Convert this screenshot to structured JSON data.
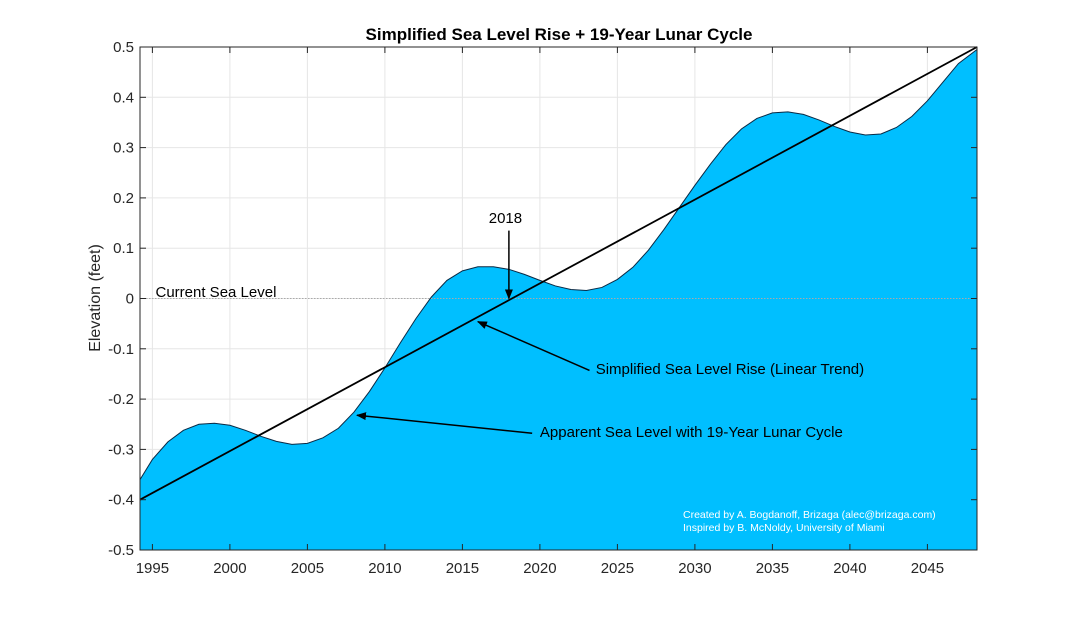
{
  "chart_data": {
    "type": "area",
    "title": "Simplified Sea Level Rise + 19-Year Lunar Cycle",
    "xlabel": "",
    "ylabel": "Elevation (feet)",
    "xlim": [
      1994.2,
      2048.2
    ],
    "ylim": [
      -0.5,
      0.5
    ],
    "x_ticks": [
      1995,
      2000,
      2005,
      2010,
      2015,
      2020,
      2025,
      2030,
      2035,
      2040,
      2045
    ],
    "y_ticks": [
      -0.5,
      -0.4,
      -0.3,
      -0.2,
      -0.1,
      0,
      0.1,
      0.2,
      0.3,
      0.4,
      0.5
    ],
    "y_tick_labels": [
      "-0.5",
      "-0.4",
      "-0.3",
      "-0.2",
      "-0.1",
      "0",
      "0.1",
      "0.2",
      "0.3",
      "0.4",
      "0.5"
    ],
    "grid": true,
    "series": [
      {
        "role": "area",
        "color": "#00bfff",
        "x": [
          1994.2,
          1995,
          1996,
          1997,
          1998,
          1999,
          2000,
          2001,
          2002,
          2003,
          2004,
          2005,
          2006,
          2007,
          2008,
          2009,
          2010,
          2011,
          2012,
          2013,
          2014,
          2015,
          2016,
          2017,
          2018,
          2019,
          2020,
          2021,
          2022,
          2023,
          2024,
          2025,
          2026,
          2027,
          2028,
          2029,
          2030,
          2031,
          2032,
          2033,
          2034,
          2035,
          2036,
          2037,
          2038,
          2039,
          2040,
          2041,
          2042,
          2043,
          2044,
          2045,
          2046,
          2047,
          2048.2
        ],
        "values": [
          -0.36,
          -0.32,
          -0.285,
          -0.262,
          -0.25,
          -0.248,
          -0.252,
          -0.262,
          -0.274,
          -0.284,
          -0.29,
          -0.288,
          -0.277,
          -0.258,
          -0.226,
          -0.185,
          -0.138,
          -0.088,
          -0.04,
          0.003,
          0.036,
          0.055,
          0.063,
          0.063,
          0.058,
          0.048,
          0.036,
          0.025,
          0.018,
          0.016,
          0.022,
          0.038,
          0.062,
          0.096,
          0.137,
          0.181,
          0.225,
          0.267,
          0.306,
          0.337,
          0.358,
          0.369,
          0.371,
          0.366,
          0.355,
          0.342,
          0.331,
          0.325,
          0.327,
          0.34,
          0.362,
          0.393,
          0.43,
          0.467,
          0.495
        ]
      },
      {
        "role": "line",
        "color": "#000000",
        "x": [
          1994.2,
          2048.2
        ],
        "values": [
          -0.4,
          0.5
        ]
      },
      {
        "role": "reference",
        "color": "#aaaaaa",
        "x": [
          1994.2,
          2048.2
        ],
        "values": [
          0,
          0
        ]
      }
    ],
    "annotations": [
      {
        "text": "Current Sea Level",
        "x": 1995.2,
        "y": 0.003,
        "anchor": "start"
      },
      {
        "text": "2018",
        "x": 2016.7,
        "y": 0.15,
        "anchor": "start",
        "arrow_from": [
          2018.0,
          0.135
        ],
        "arrow_to": [
          2018.0,
          0.0
        ]
      },
      {
        "text": "Simplified Sea Level Rise (Linear Trend)",
        "x": 2023.6,
        "y": -0.15,
        "anchor": "start",
        "arrow_from": [
          2023.2,
          -0.143
        ],
        "arrow_to": [
          2016.0,
          -0.046
        ]
      },
      {
        "text": "Apparent Sea Level with 19-Year Lunar Cycle",
        "x": 2020.0,
        "y": -0.275,
        "anchor": "start",
        "arrow_from": [
          2019.5,
          -0.268
        ],
        "arrow_to": [
          2008.2,
          -0.232
        ]
      }
    ],
    "credits": [
      "Created by A. Bogdanoff, Brizaga (alec@brizaga.com)",
      "Inspired by B. McNoldy, University of Miami"
    ]
  }
}
